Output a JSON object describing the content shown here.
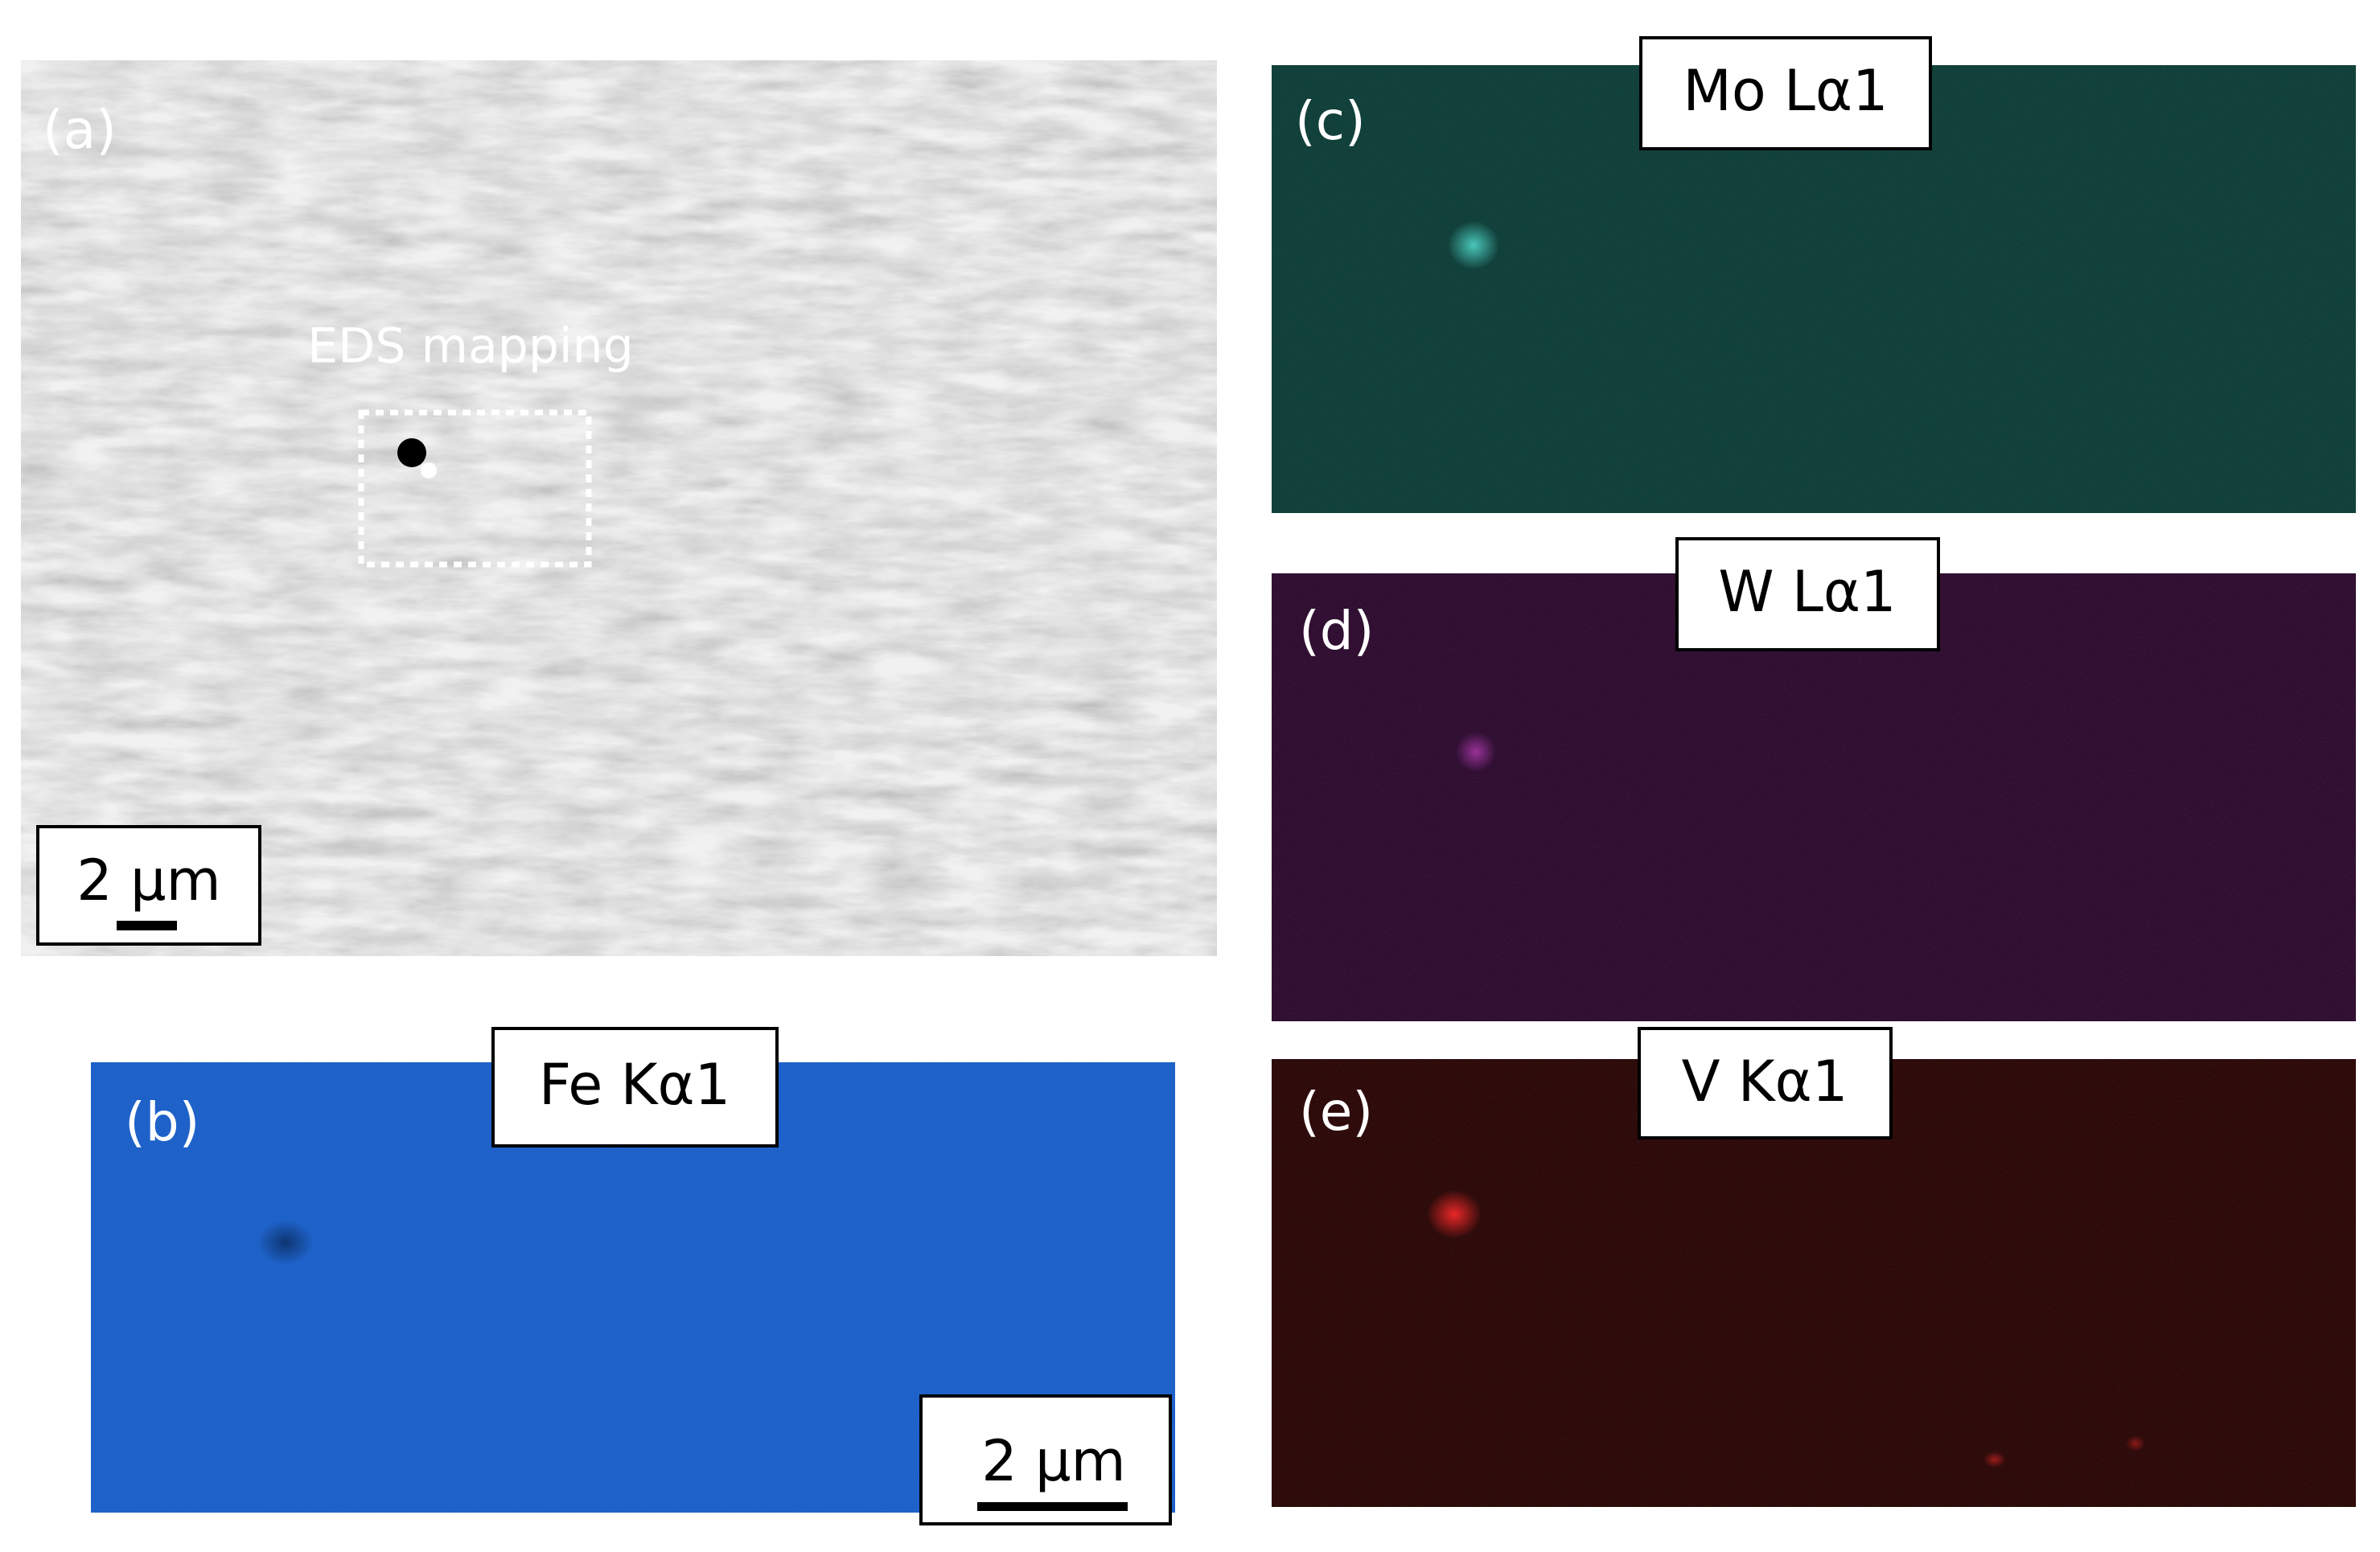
{
  "panels": [
    {
      "label": "(a)",
      "annotation": "EDS mapping",
      "scale_bar": "2 µm"
    },
    {
      "label": "(b)",
      "element": "Fe Kα1",
      "scale_bar": "2 µm"
    },
    {
      "label": "(c)",
      "element": "Mo Lα1"
    },
    {
      "label": "(d)",
      "element": "W Lα1"
    },
    {
      "label": "(e)",
      "element": "V Kα1"
    }
  ]
}
